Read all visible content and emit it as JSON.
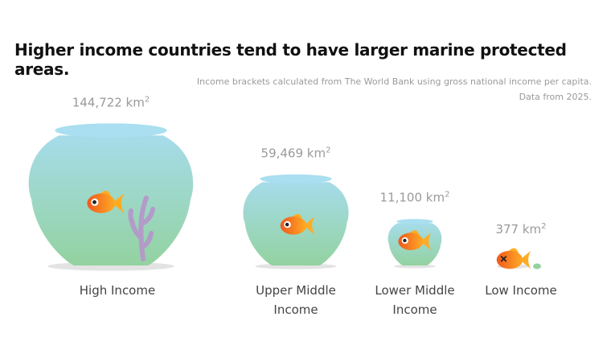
{
  "title": "Higher income countries tend to have larger marine protected areas.",
  "subtitle_lines": [
    "Income brackets calculated from The World Bank using gross national income per capita.",
    "Data from 2025."
  ],
  "chart_data": {
    "type": "bar",
    "title": "Higher income countries tend to have larger marine protected areas.",
    "subtitle": "Income brackets calculated from The World Bank using gross national income per capita. Data from 2025.",
    "unit": "km²",
    "categories": [
      "High Income",
      "Upper Middle Income",
      "Lower Middle Income",
      "Low Income"
    ],
    "category_lines": [
      [
        "High Income"
      ],
      [
        "Upper Middle",
        "Income"
      ],
      [
        "Lower Middle",
        "Income"
      ],
      [
        "Low Income"
      ]
    ],
    "values": [
      144722,
      59469,
      11100,
      377
    ],
    "value_labels": [
      "144,722 km",
      "59,469 km",
      "11,100 km",
      "377 km"
    ],
    "value_superscript": "2",
    "xlabel": "",
    "ylabel": "",
    "grid": false,
    "legend": "none",
    "colors": {
      "water_top": "#a6dcea",
      "water_bottom": "#93d2a0",
      "rim": "#a9dff0",
      "shadow": "#e3e3e3",
      "fish_light": "#ffac24",
      "fish_dark": "#f0581e",
      "coral": "#b39bc9",
      "text_title": "#111111",
      "text_muted": "#9a9a9a",
      "text_label": "#444444"
    }
  }
}
